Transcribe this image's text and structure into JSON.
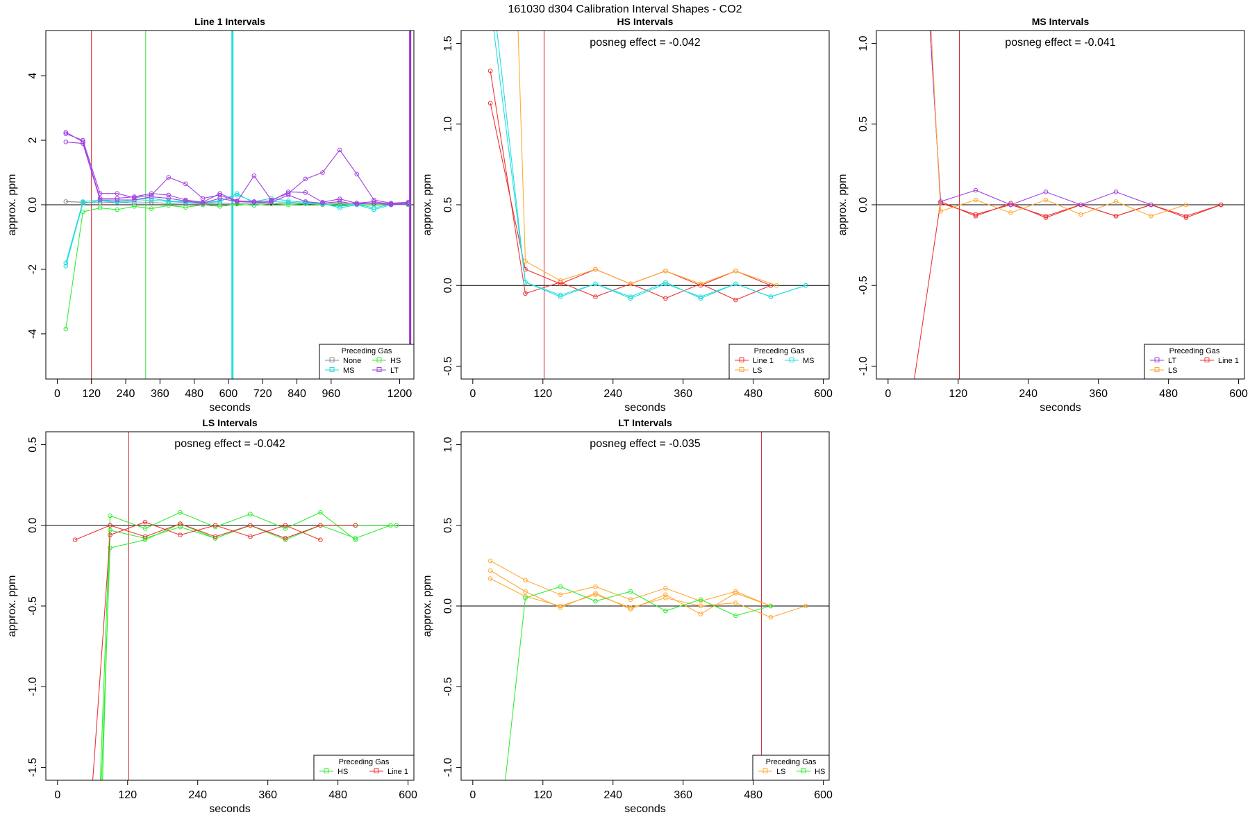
{
  "figure_title": "161030  d304   Calibration Interval Shapes - CO2",
  "chart_data": [
    {
      "id": "line1",
      "type": "line",
      "title": "Line 1 Intervals",
      "xlabel": "seconds",
      "ylabel": "approx. ppm",
      "xlim": [
        -40,
        1250
      ],
      "ylim": [
        -5.4,
        5.4
      ],
      "xticks": [
        0,
        120,
        240,
        360,
        480,
        600,
        720,
        840,
        960,
        1200
      ],
      "yticks": [
        -4,
        -2,
        0,
        2,
        4
      ],
      "hlines": [
        0
      ],
      "vlines": [
        {
          "x": 120,
          "color": "#cc2222",
          "width": 1
        },
        {
          "x": 310,
          "color": "#33dd33",
          "width": 1
        },
        {
          "x": 614,
          "color": "#22dddd",
          "width": 3
        },
        {
          "x": 1237,
          "color": "#9933cc",
          "width": 3
        }
      ],
      "annotation": "",
      "legend": {
        "title": "Preceding Gas",
        "columns": 2,
        "entries": [
          {
            "label": "None",
            "color": "#888888"
          },
          {
            "label": "HS",
            "color": "#33ee33"
          },
          {
            "label": "MS",
            "color": "#22dddd"
          },
          {
            "label": "LT",
            "color": "#a040e0"
          }
        ]
      },
      "series": [
        {
          "name": "None",
          "color": "#888888",
          "x": [
            30,
            90,
            150,
            210,
            270,
            330,
            390,
            450,
            510,
            570,
            630,
            690,
            750,
            810,
            870,
            930,
            990,
            1050,
            1110,
            1170,
            1230
          ],
          "y": [
            0.1,
            0.08,
            0.06,
            0.08,
            0.05,
            0.07,
            0.04,
            0.06,
            0.03,
            0.05,
            0.04,
            0.05,
            0.03,
            0.05,
            0.04,
            0.05,
            0.04,
            0.05,
            0.03,
            0.04,
            0.03
          ]
        },
        {
          "name": "HS",
          "color": "#33ee33",
          "x": [
            30,
            90,
            150,
            210,
            270,
            330,
            390,
            450,
            510,
            570,
            630,
            690,
            750,
            810,
            870,
            930,
            990,
            1050,
            1110,
            1170,
            1230
          ],
          "y": [
            -3.85,
            -0.22,
            -0.1,
            -0.15,
            -0.05,
            -0.12,
            -0.02,
            -0.08,
            0.0,
            -0.05,
            0.02,
            -0.02,
            0.03,
            0.0,
            0.03,
            0.0,
            0.02,
            0.0,
            0.01,
            0.0,
            0.0
          ]
        },
        {
          "name": "MS a",
          "color": "#22dddd",
          "x": [
            30,
            90,
            150,
            210,
            270,
            330,
            390,
            450,
            510,
            570,
            630,
            690,
            750,
            810,
            870,
            930,
            990,
            1050,
            1110,
            1170,
            1230
          ],
          "y": [
            -1.8,
            0.1,
            0.15,
            0.1,
            0.15,
            0.2,
            0.12,
            0.1,
            0.08,
            0.12,
            0.3,
            0.1,
            0.2,
            0.12,
            0.08,
            0.05,
            -0.1,
            0.0,
            -0.15,
            0.0,
            0.05
          ]
        },
        {
          "name": "MS b",
          "color": "#22dddd",
          "x": [
            30,
            90,
            150,
            210,
            270,
            330,
            390,
            450,
            510,
            570,
            630,
            690,
            750,
            810,
            870,
            930,
            990,
            1050,
            1110,
            1170,
            1230
          ],
          "y": [
            -1.9,
            0.05,
            0.12,
            0.08,
            0.1,
            0.15,
            0.1,
            0.08,
            0.05,
            0.1,
            0.35,
            0.05,
            0.1,
            0.08,
            0.05,
            0.02,
            -0.05,
            0.02,
            -0.1,
            0.02,
            0.03
          ]
        },
        {
          "name": "LT a",
          "color": "#a040e0",
          "x": [
            30,
            90,
            150,
            210,
            270,
            330,
            390,
            450,
            510,
            570,
            630,
            690,
            750,
            810,
            870,
            930,
            990,
            1050,
            1110,
            1170,
            1230
          ],
          "y": [
            2.2,
            2.0,
            0.35,
            0.35,
            0.22,
            0.3,
            0.85,
            0.65,
            0.2,
            0.3,
            0.1,
            0.9,
            0.15,
            0.35,
            0.8,
            1.0,
            1.7,
            0.95,
            0.15,
            0.05,
            0.08
          ]
        },
        {
          "name": "LT b",
          "color": "#a040e0",
          "x": [
            30,
            90,
            150,
            210,
            270,
            330,
            390,
            450,
            510,
            570,
            630,
            690,
            750,
            810,
            870,
            930,
            990,
            1050,
            1110,
            1170,
            1230
          ],
          "y": [
            2.25,
            1.95,
            0.2,
            0.2,
            0.25,
            0.35,
            0.3,
            0.15,
            0.08,
            0.35,
            0.12,
            0.1,
            0.12,
            0.4,
            0.38,
            0.08,
            0.18,
            0.05,
            0.1,
            0.02,
            0.05
          ]
        },
        {
          "name": "LT c",
          "color": "#a040e0",
          "x": [
            30,
            90,
            150,
            210,
            270,
            330,
            390,
            450,
            510,
            570,
            630,
            690,
            750,
            810,
            870,
            930,
            990,
            1050,
            1110,
            1170,
            1230
          ],
          "y": [
            1.95,
            1.9,
            0.15,
            0.15,
            0.15,
            0.25,
            0.2,
            0.12,
            0.05,
            0.2,
            0.1,
            0.08,
            0.08,
            0.3,
            0.1,
            0.05,
            0.1,
            0.02,
            0.05,
            0.0,
            0.02
          ]
        }
      ]
    },
    {
      "id": "hs",
      "type": "line",
      "title": "HS Intervals",
      "xlabel": "seconds",
      "ylabel": "approx. ppm",
      "xlim": [
        -20,
        610
      ],
      "ylim": [
        -0.58,
        1.58
      ],
      "xticks": [
        0,
        120,
        240,
        360,
        480,
        600
      ],
      "yticks": [
        -0.5,
        0.0,
        0.5,
        1.0,
        1.5
      ],
      "hlines": [
        0
      ],
      "vlines": [
        {
          "x": 122,
          "color": "#cc2222",
          "width": 1
        }
      ],
      "annotation": "posneg effect = -0.042",
      "legend": {
        "title": "Preceding Gas",
        "columns": 2,
        "entries": [
          {
            "label": "Line 1",
            "color": "#ee3333"
          },
          {
            "label": "MS",
            "color": "#22dddd"
          },
          {
            "label": "LS",
            "color": "#ffaa33"
          }
        ]
      },
      "series": [
        {
          "name": "Line 1 a",
          "color": "#ee3333",
          "x": [
            30,
            90,
            150,
            210,
            270,
            330,
            390,
            450,
            510
          ],
          "y": [
            1.33,
            -0.05,
            0.02,
            -0.07,
            0.01,
            -0.08,
            0.01,
            -0.09,
            0.0
          ]
        },
        {
          "name": "Line 1 b",
          "color": "#ee3333",
          "x": [
            30,
            90,
            150,
            210,
            270,
            330,
            390,
            450,
            510
          ],
          "y": [
            1.13,
            0.1,
            0.01,
            0.1,
            0.01,
            0.09,
            0.0,
            0.09,
            0.0
          ]
        },
        {
          "name": "MS",
          "color": "#22dddd",
          "x": [
            30,
            90,
            150,
            210,
            270,
            330,
            390,
            450,
            510,
            570
          ],
          "y": [
            1.75,
            0.02,
            -0.06,
            0.01,
            -0.08,
            0.01,
            -0.07,
            0.01,
            -0.07,
            0.0
          ]
        },
        {
          "name": "MS b",
          "color": "#22dddd",
          "x": [
            36,
            90,
            150,
            210,
            270,
            330,
            390,
            450,
            510,
            570
          ],
          "y": [
            1.75,
            0.02,
            -0.07,
            0.01,
            -0.07,
            0.02,
            -0.08,
            0.01,
            -0.07,
            0.0
          ]
        },
        {
          "name": "LS",
          "color": "#ffaa33",
          "x": [
            76,
            90,
            150,
            210,
            270,
            330,
            390,
            450,
            520
          ],
          "y": [
            1.75,
            0.15,
            0.03,
            0.1,
            0.01,
            0.09,
            0.01,
            0.09,
            0.0
          ]
        }
      ]
    },
    {
      "id": "ms",
      "type": "line",
      "title": "MS Intervals",
      "xlabel": "seconds",
      "ylabel": "approx. ppm",
      "xlim": [
        -20,
        610
      ],
      "ylim": [
        -1.08,
        1.08
      ],
      "xticks": [
        0,
        120,
        240,
        360,
        480,
        600
      ],
      "yticks": [
        -1.0,
        -0.5,
        0.0,
        0.5,
        1.0
      ],
      "hlines": [
        0
      ],
      "vlines": [
        {
          "x": 122,
          "color": "#cc2222",
          "width": 1
        }
      ],
      "annotation": "posneg effect = -0.041",
      "legend": {
        "title": "Preceding Gas",
        "columns": 2,
        "entries": [
          {
            "label": "LT",
            "color": "#a040e0"
          },
          {
            "label": "Line 1",
            "color": "#ee3333"
          },
          {
            "label": "LS",
            "color": "#ffaa33"
          }
        ]
      },
      "series": [
        {
          "name": "Line 1 a",
          "color": "#ee3333",
          "x": [
            40,
            90,
            150,
            210,
            270,
            330,
            390,
            450,
            510,
            570
          ],
          "y": [
            -1.2,
            0.02,
            -0.07,
            0.01,
            -0.08,
            0.0,
            -0.07,
            0.0,
            -0.08,
            0.0
          ]
        },
        {
          "name": "Line 1 b",
          "color": "#ee3333",
          "x": [
            70,
            90,
            150,
            210,
            270,
            330,
            390,
            450,
            510,
            570
          ],
          "y": [
            1.2,
            0.01,
            -0.06,
            0.0,
            -0.07,
            0.0,
            -0.07,
            0.0,
            -0.07,
            0.0
          ]
        },
        {
          "name": "LT",
          "color": "#a040e0",
          "x": [
            70,
            90,
            150,
            210,
            270,
            330,
            390,
            450
          ],
          "y": [
            1.2,
            0.02,
            0.09,
            0.0,
            0.08,
            0.0,
            0.08,
            0.0
          ]
        },
        {
          "name": "LS",
          "color": "#ffaa33",
          "x": [
            72,
            90,
            150,
            210,
            270,
            330,
            390,
            450,
            510
          ],
          "y": [
            1.2,
            -0.04,
            0.03,
            -0.05,
            0.03,
            -0.06,
            0.02,
            -0.07,
            0.0
          ]
        }
      ]
    },
    {
      "id": "ls",
      "type": "line",
      "title": "LS Intervals",
      "xlabel": "seconds",
      "ylabel": "approx. ppm",
      "xlim": [
        -20,
        610
      ],
      "ylim": [
        -1.58,
        0.58
      ],
      "xticks": [
        0,
        120,
        240,
        360,
        480,
        600
      ],
      "yticks": [
        -1.5,
        -1.0,
        -0.5,
        0.0,
        0.5
      ],
      "hlines": [
        0
      ],
      "vlines": [
        {
          "x": 122,
          "color": "#cc2222",
          "width": 1
        }
      ],
      "annotation": "posneg effect = -0.042",
      "legend": {
        "title": "Preceding Gas",
        "columns": 2,
        "entries": [
          {
            "label": "HS",
            "color": "#33ee33"
          },
          {
            "label": "Line 1",
            "color": "#ee3333"
          }
        ]
      },
      "series": [
        {
          "name": "HS a",
          "color": "#33ee33",
          "x": [
            72,
            90,
            150,
            210,
            270,
            330,
            390,
            450,
            510
          ],
          "y": [
            -1.7,
            0.06,
            -0.02,
            0.08,
            -0.01,
            0.07,
            -0.02,
            0.08,
            -0.09
          ]
        },
        {
          "name": "HS b",
          "color": "#33ee33",
          "x": [
            74,
            90,
            150,
            210,
            270,
            330,
            390,
            450,
            510,
            570
          ],
          "y": [
            -1.7,
            -0.14,
            -0.09,
            0.01,
            -0.08,
            0.0,
            -0.08,
            0.0,
            -0.08,
            0.0
          ]
        },
        {
          "name": "HS c",
          "color": "#33ee33",
          "x": [
            76,
            90,
            150,
            210,
            270,
            330,
            390,
            450,
            510,
            580
          ],
          "y": [
            -1.7,
            -0.03,
            -0.08,
            -0.01,
            -0.08,
            0.0,
            -0.09,
            0.0,
            0.0,
            0.0
          ]
        },
        {
          "name": "Line 1 a",
          "color": "#ee3333",
          "x": [
            30,
            90,
            150,
            210,
            270,
            330,
            390,
            450,
            510
          ],
          "y": [
            -0.09,
            0.0,
            -0.07,
            0.01,
            -0.07,
            0.0,
            -0.08,
            0.0,
            0.0
          ]
        },
        {
          "name": "Line 1 b",
          "color": "#ee3333",
          "x": [
            58,
            90,
            150,
            210,
            270,
            330,
            390,
            450
          ],
          "y": [
            -1.7,
            -0.06,
            0.02,
            -0.06,
            0.0,
            -0.07,
            0.0,
            -0.09
          ]
        }
      ]
    },
    {
      "id": "lt",
      "type": "line",
      "title": "LT Intervals",
      "xlabel": "seconds",
      "ylabel": "approx. ppm",
      "xlim": [
        -20,
        610
      ],
      "ylim": [
        -1.08,
        1.08
      ],
      "xticks": [
        0,
        120,
        240,
        360,
        480,
        600
      ],
      "yticks": [
        -1.0,
        -0.5,
        0.0,
        0.5,
        1.0
      ],
      "hlines": [
        0
      ],
      "vlines": [
        {
          "x": 494,
          "color": "#cc2222",
          "width": 1
        }
      ],
      "annotation": "posneg effect = -0.035",
      "legend": {
        "title": "Preceding Gas",
        "columns": 2,
        "entries": [
          {
            "label": "LS",
            "color": "#ffaa33"
          },
          {
            "label": "HS",
            "color": "#33ee33"
          }
        ]
      },
      "series": [
        {
          "name": "LS a",
          "color": "#ffaa33",
          "x": [
            30,
            90,
            150,
            210,
            270,
            330,
            390,
            450,
            510
          ],
          "y": [
            0.28,
            0.16,
            0.07,
            0.12,
            0.04,
            0.11,
            0.03,
            0.09,
            0.0
          ]
        },
        {
          "name": "LS b",
          "color": "#ffaa33",
          "x": [
            30,
            90,
            150,
            210,
            270,
            330,
            390,
            450,
            510
          ],
          "y": [
            0.22,
            0.09,
            -0.01,
            0.08,
            -0.02,
            0.07,
            -0.05,
            0.08,
            0.0
          ]
        },
        {
          "name": "LS c",
          "color": "#ffaa33",
          "x": [
            30,
            90,
            150,
            210,
            270,
            330,
            390,
            450,
            510,
            570
          ],
          "y": [
            0.17,
            0.06,
            0.0,
            0.07,
            -0.01,
            0.05,
            0.0,
            0.02,
            -0.07,
            0.0
          ]
        },
        {
          "name": "HS",
          "color": "#33ee33",
          "x": [
            52,
            90,
            150,
            210,
            270,
            330,
            390,
            450,
            510
          ],
          "y": [
            -1.2,
            0.05,
            0.12,
            0.03,
            0.09,
            -0.03,
            0.04,
            -0.06,
            0.0
          ]
        }
      ]
    }
  ]
}
